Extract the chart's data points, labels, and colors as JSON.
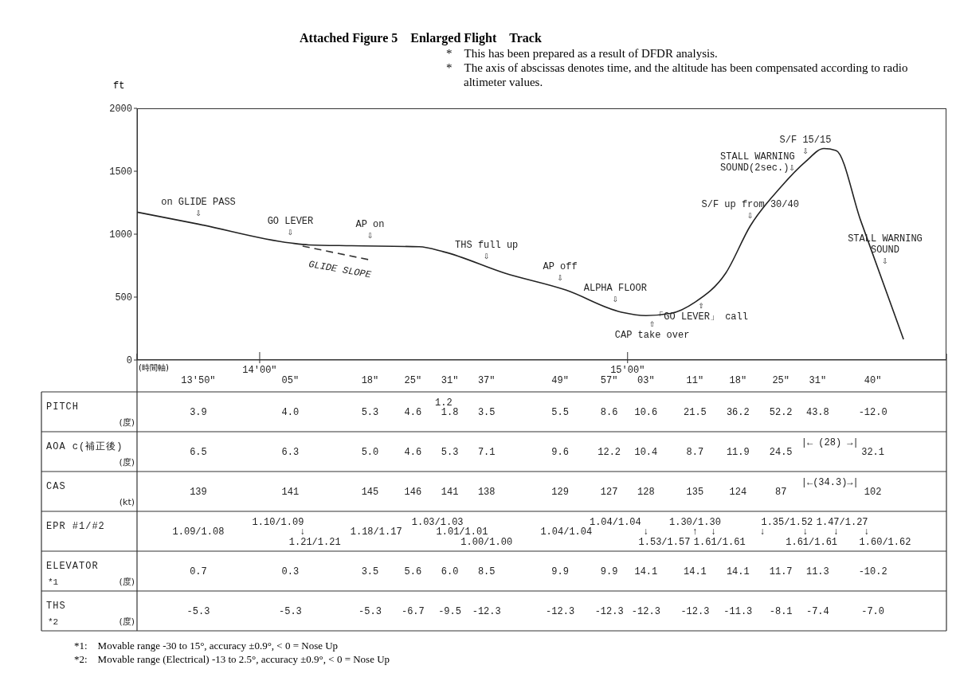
{
  "chart_data": [
    {
      "type": "line",
      "title": "Attached Figure 5　Enlarged Flight　Track",
      "subtitle": "*　This has been prepared as a result of DFDR analysis.\n*　The axis of abscissas denotes time, and the altitude has been compensated according to radio altimeter values.",
      "xlabel": "(時間軸)",
      "ylabel": "ft",
      "categories": [
        null,
        null,
        null,
        null,
        null,
        null,
        null,
        null,
        null,
        null,
        null,
        null,
        null,
        null,
        null,
        null,
        null,
        null,
        null,
        null,
        "14'00\"",
        null,
        null,
        null,
        null,
        null,
        null,
        null,
        null,
        null,
        null,
        null,
        null,
        null,
        null,
        null,
        null,
        null,
        null,
        null,
        null,
        null,
        null,
        null,
        null,
        null,
        null,
        null,
        null,
        null,
        null,
        null,
        null,
        null,
        null,
        null,
        null,
        null,
        null,
        null,
        null,
        null,
        null,
        null,
        null,
        null,
        null,
        null,
        null,
        null,
        null,
        null,
        null,
        null,
        null,
        null,
        null,
        null,
        null,
        null,
        "15'00\"",
        null,
        null,
        null,
        null,
        null,
        null,
        null,
        null,
        null,
        null,
        null,
        null,
        null,
        null,
        null,
        null,
        null,
        null,
        null,
        null,
        null,
        null,
        null,
        null,
        null,
        null,
        null,
        null,
        null,
        null,
        null,
        null,
        null,
        null,
        null,
        null,
        null,
        null,
        null,
        null,
        null,
        null,
        null,
        null,
        null,
        null,
        null,
        null,
        null,
        null,
        null,
        null
      ],
      "ylim": [
        0,
        2000
      ],
      "yticks": [
        0,
        500,
        1000,
        1500,
        2000
      ],
      "grid": false,
      "legend": false,
      "marker": "none",
      "series": [
        {
          "color": "#222222",
          "values": [
            1175,
            null,
            null,
            null,
            null,
            null,
            null,
            null,
            null,
            null,
            1080,
            null,
            null,
            null,
            null,
            null,
            null,
            null,
            null,
            null,
            null,
            null,
            null,
            null,
            null,
            930,
            null,
            null,
            915,
            null,
            null,
            null,
            null,
            null,
            null,
            908,
            null,
            null,
            null,
            null,
            null,
            null,
            null,
            null,
            null,
            null,
            900,
            null,
            null,
            null,
            860,
            null,
            null,
            null,
            null,
            null,
            null,
            null,
            null,
            null,
            690,
            null,
            null,
            null,
            null,
            null,
            null,
            null,
            null,
            null,
            555,
            null,
            null,
            null,
            null,
            null,
            null,
            null,
            null,
            380,
            null,
            null,
            null,
            353,
            null,
            null,
            null,
            370,
            null,
            null,
            null,
            460,
            null,
            null,
            null,
            null,
            690,
            null,
            null,
            null,
            1065,
            null,
            null,
            null,
            null,
            1375,
            null,
            null,
            null,
            1575,
            null,
            null,
            1680,
            null,
            1665,
            null,
            null,
            null,
            1110,
            null,
            null,
            null,
            null,
            null,
            null,
            165,
            null,
            null,
            null,
            null,
            null,
            null,
            null
          ]
        },
        {
          "name": "GLIDE SLOPE",
          "type": "line",
          "line_style": "dashed",
          "color": "#333333",
          "values": [
            null,
            null,
            null,
            null,
            null,
            null,
            null,
            null,
            null,
            null,
            null,
            null,
            null,
            null,
            null,
            null,
            null,
            null,
            null,
            null,
            null,
            null,
            null,
            null,
            null,
            null,
            null,
            905,
            null,
            null,
            null,
            null,
            null,
            null,
            null,
            null,
            null,
            null,
            795,
            null,
            null,
            null,
            null,
            null,
            null,
            null,
            null,
            null,
            null,
            null,
            null,
            null,
            null,
            null,
            null,
            null,
            null,
            null,
            null,
            null,
            null,
            null,
            null,
            null,
            null,
            null,
            null,
            null,
            null,
            null,
            null,
            null,
            null,
            null,
            null,
            null,
            null,
            null,
            null,
            null,
            null,
            null,
            null,
            null,
            null,
            null,
            null,
            null,
            null,
            null,
            null,
            null,
            null,
            null,
            null,
            null,
            null,
            null,
            null,
            null,
            null,
            null,
            null,
            null,
            null,
            null,
            null,
            null,
            null,
            null,
            null,
            null,
            null,
            null,
            null,
            null,
            null,
            null,
            null,
            null,
            null,
            null,
            null,
            null,
            null,
            null,
            null,
            null,
            null,
            null,
            null,
            null,
            null
          ]
        }
      ],
      "annotations": [
        "on GLIDE PASS\n⇩",
        "GO LEVER\n⇩",
        "AP on\n⇩",
        "THS full up\n⇩",
        "AP off\n⇩",
        "ALPHA FLOOR\n⇩",
        "⇧\nCAP take over",
        "⇧\n「GO LEVER」 call",
        "S/F up from 30/40\n⇩",
        "STALL WARNING\nSOUND(2sec.)⇩",
        "S/F 15/15\n⇩",
        "STALL WARNING\nSOUND\n⇩"
      ]
    },
    {
      "type": "heatmap",
      "categories": [
        null,
        null,
        null,
        null,
        null,
        null,
        null,
        null,
        null,
        null,
        "13'50\"",
        null,
        null,
        null,
        null,
        null,
        null,
        null,
        null,
        null,
        null,
        null,
        null,
        null,
        null,
        "05\"",
        null,
        null,
        null,
        null,
        null,
        null,
        null,
        null,
        null,
        null,
        null,
        null,
        "18\"",
        null,
        null,
        null,
        null,
        null,
        null,
        "25\"",
        null,
        null,
        null,
        null,
        null,
        "31\"",
        null,
        null,
        null,
        null,
        null,
        "37\"",
        null,
        null,
        null,
        null,
        null,
        null,
        null,
        null,
        null,
        null,
        null,
        "49\"",
        null,
        null,
        null,
        null,
        null,
        null,
        null,
        "57\"",
        null,
        null,
        null,
        null,
        null,
        "03\"",
        null,
        null,
        null,
        null,
        null,
        null,
        null,
        "11\"",
        null,
        null,
        null,
        null,
        null,
        null,
        "18\"",
        null,
        null,
        null,
        null,
        null,
        null,
        "25\"",
        null,
        null,
        null,
        null,
        null,
        "31\"",
        null,
        null,
        null,
        null,
        null,
        null,
        null,
        null,
        "40\"",
        null,
        null,
        null,
        null,
        null,
        null,
        null,
        null,
        null,
        null,
        null,
        null
      ],
      "y_categories": [
        "PITCH\n(度)",
        "AOA c(補正後)\n(度)",
        "CAS\n(kt)",
        "EPR #1/#2",
        "ELEVATOR\n*1\n(度)",
        "THS\n*2\n(度)"
      ],
      "cells": [
        [
          null,
          null,
          null,
          null,
          null,
          null,
          null,
          null,
          null,
          null,
          3.9,
          null,
          null,
          null,
          null,
          null,
          null,
          null,
          null,
          null,
          null,
          null,
          null,
          null,
          null,
          4.0,
          null,
          null,
          null,
          null,
          null,
          null,
          null,
          null,
          null,
          null,
          null,
          null,
          5.3,
          null,
          null,
          null,
          null,
          null,
          null,
          4.6,
          null,
          null,
          null,
          null,
          1.2,
          1.8,
          null,
          null,
          null,
          null,
          null,
          3.5,
          null,
          null,
          null,
          null,
          null,
          null,
          null,
          null,
          null,
          null,
          null,
          5.5,
          null,
          null,
          null,
          null,
          null,
          null,
          null,
          8.6,
          null,
          null,
          null,
          null,
          null,
          10.6,
          null,
          null,
          null,
          null,
          null,
          null,
          null,
          21.5,
          null,
          null,
          null,
          null,
          null,
          null,
          36.2,
          null,
          null,
          null,
          null,
          null,
          null,
          52.2,
          null,
          null,
          null,
          null,
          null,
          43.8,
          null,
          null,
          null,
          null,
          null,
          null,
          null,
          null,
          -12.0,
          null,
          null,
          null,
          null,
          null,
          null,
          null,
          null,
          null,
          null,
          null,
          null
        ],
        [
          null,
          null,
          null,
          null,
          null,
          null,
          null,
          null,
          null,
          null,
          6.5,
          null,
          null,
          null,
          null,
          null,
          null,
          null,
          null,
          null,
          null,
          null,
          null,
          null,
          null,
          6.3,
          null,
          null,
          null,
          null,
          null,
          null,
          null,
          null,
          null,
          null,
          null,
          null,
          5.0,
          null,
          null,
          null,
          null,
          null,
          null,
          4.6,
          null,
          null,
          null,
          null,
          null,
          5.3,
          null,
          null,
          null,
          null,
          null,
          7.1,
          null,
          null,
          null,
          null,
          null,
          null,
          null,
          null,
          null,
          null,
          null,
          9.6,
          null,
          null,
          null,
          null,
          null,
          null,
          null,
          12.2,
          null,
          null,
          null,
          null,
          null,
          10.4,
          null,
          null,
          null,
          null,
          null,
          null,
          null,
          8.7,
          null,
          null,
          null,
          null,
          null,
          null,
          11.9,
          null,
          null,
          null,
          null,
          null,
          null,
          24.5,
          null,
          null,
          null,
          null,
          null,
          null,
          null,
          28,
          null,
          null,
          null,
          null,
          null,
          null,
          32.1,
          null,
          null,
          null,
          null,
          null,
          null,
          null,
          null,
          null,
          null,
          null,
          null
        ],
        [
          null,
          null,
          null,
          null,
          null,
          null,
          null,
          null,
          null,
          null,
          139,
          null,
          null,
          null,
          null,
          null,
          null,
          null,
          null,
          null,
          null,
          null,
          null,
          null,
          null,
          141,
          null,
          null,
          null,
          null,
          null,
          null,
          null,
          null,
          null,
          null,
          null,
          null,
          145,
          null,
          null,
          null,
          null,
          null,
          null,
          146,
          null,
          null,
          null,
          null,
          null,
          141,
          null,
          null,
          null,
          null,
          null,
          138,
          null,
          null,
          null,
          null,
          null,
          null,
          null,
          null,
          null,
          null,
          null,
          129,
          null,
          null,
          null,
          null,
          null,
          null,
          null,
          127,
          null,
          null,
          null,
          null,
          null,
          128,
          null,
          null,
          null,
          null,
          null,
          null,
          null,
          135,
          null,
          null,
          null,
          null,
          null,
          null,
          124,
          null,
          null,
          null,
          null,
          null,
          null,
          87,
          null,
          null,
          null,
          null,
          null,
          null,
          null,
          34.3,
          null,
          null,
          null,
          null,
          null,
          null,
          102,
          null,
          null,
          null,
          null,
          null,
          null,
          null,
          null,
          null,
          null,
          null,
          null
        ],
        [
          null,
          null,
          null,
          null,
          null,
          null,
          null,
          null,
          null,
          null,
          null,
          null,
          null,
          null,
          null,
          null,
          null,
          null,
          null,
          null,
          null,
          null,
          null,
          null,
          null,
          null,
          null,
          null,
          null,
          null,
          null,
          null,
          null,
          null,
          null,
          null,
          null,
          null,
          null,
          null,
          null,
          null,
          null,
          null,
          null,
          null,
          null,
          null,
          null,
          null,
          null,
          null,
          null,
          null,
          null,
          null,
          null,
          null,
          null,
          null,
          null,
          null,
          null,
          null,
          null,
          null,
          null,
          null,
          null,
          null,
          null,
          null,
          null,
          null,
          null,
          null,
          null,
          null,
          null,
          null,
          null,
          null,
          null,
          null,
          null,
          null,
          null,
          null,
          null,
          null,
          null,
          null,
          null,
          null,
          null,
          null,
          null,
          null,
          null,
          null,
          null,
          null,
          null,
          null,
          null,
          null,
          null,
          null,
          null,
          null,
          null,
          null,
          null,
          null,
          null,
          null,
          null,
          null,
          null,
          null,
          null,
          null,
          null,
          null,
          null,
          null,
          null,
          null,
          null,
          null,
          null,
          null,
          null
        ],
        [
          null,
          null,
          null,
          null,
          null,
          null,
          null,
          null,
          null,
          null,
          0.7,
          null,
          null,
          null,
          null,
          null,
          null,
          null,
          null,
          null,
          null,
          null,
          null,
          null,
          null,
          0.3,
          null,
          null,
          null,
          null,
          null,
          null,
          null,
          null,
          null,
          null,
          null,
          null,
          3.5,
          null,
          null,
          null,
          null,
          null,
          null,
          5.6,
          null,
          null,
          null,
          null,
          null,
          6.0,
          null,
          null,
          null,
          null,
          null,
          8.5,
          null,
          null,
          null,
          null,
          null,
          null,
          null,
          null,
          null,
          null,
          null,
          9.9,
          null,
          null,
          null,
          null,
          null,
          null,
          null,
          9.9,
          null,
          null,
          null,
          null,
          null,
          14.1,
          null,
          null,
          null,
          null,
          null,
          null,
          null,
          14.1,
          null,
          null,
          null,
          null,
          null,
          null,
          14.1,
          null,
          null,
          null,
          null,
          null,
          null,
          11.7,
          null,
          null,
          null,
          null,
          null,
          11.3,
          null,
          null,
          null,
          null,
          null,
          null,
          null,
          null,
          -10.2,
          null,
          null,
          null,
          null,
          null,
          null,
          null,
          null,
          null,
          null,
          null,
          null
        ],
        [
          null,
          null,
          null,
          null,
          null,
          null,
          null,
          null,
          null,
          null,
          -5.3,
          null,
          null,
          null,
          null,
          null,
          null,
          null,
          null,
          null,
          null,
          null,
          null,
          null,
          null,
          -5.3,
          null,
          null,
          null,
          null,
          null,
          null,
          null,
          null,
          null,
          null,
          null,
          null,
          -5.3,
          null,
          null,
          null,
          null,
          null,
          null,
          -6.7,
          null,
          null,
          null,
          null,
          null,
          -9.5,
          null,
          null,
          null,
          null,
          null,
          -12.3,
          null,
          null,
          null,
          null,
          null,
          null,
          null,
          null,
          null,
          null,
          null,
          -12.3,
          null,
          null,
          null,
          null,
          null,
          null,
          null,
          -12.3,
          null,
          null,
          null,
          null,
          null,
          -12.3,
          null,
          null,
          null,
          null,
          null,
          null,
          null,
          -12.3,
          null,
          null,
          null,
          null,
          null,
          null,
          -11.3,
          null,
          null,
          null,
          null,
          null,
          null,
          -8.1,
          null,
          null,
          null,
          null,
          null,
          -7.4,
          null,
          null,
          null,
          null,
          null,
          null,
          null,
          null,
          -7.0,
          null,
          null,
          null,
          null,
          null,
          null,
          null,
          null,
          null,
          null,
          null,
          null
        ]
      ],
      "cell_labels": [
        [
          null,
          null,
          null,
          null,
          null,
          null,
          null,
          null,
          null,
          null,
          "3.9",
          null,
          null,
          null,
          null,
          null,
          null,
          null,
          null,
          null,
          null,
          null,
          null,
          null,
          null,
          "4.0",
          null,
          null,
          null,
          null,
          null,
          null,
          null,
          null,
          null,
          null,
          null,
          null,
          "5.3",
          null,
          null,
          null,
          null,
          null,
          null,
          "4.6",
          null,
          null,
          null,
          null,
          "1.2\n\n",
          "1.8",
          null,
          null,
          null,
          null,
          null,
          "3.5",
          null,
          null,
          null,
          null,
          null,
          null,
          null,
          null,
          null,
          null,
          null,
          "5.5",
          null,
          null,
          null,
          null,
          null,
          null,
          null,
          "8.6",
          null,
          null,
          null,
          null,
          null,
          "10.6",
          null,
          null,
          null,
          null,
          null,
          null,
          null,
          "21.5",
          null,
          null,
          null,
          null,
          null,
          null,
          "36.2",
          null,
          null,
          null,
          null,
          null,
          null,
          "52.2",
          null,
          null,
          null,
          null,
          null,
          "43.8",
          null,
          null,
          null,
          null,
          null,
          null,
          null,
          null,
          "-12.0",
          null,
          null,
          null,
          null,
          null,
          null,
          null,
          null,
          null,
          null,
          null,
          null
        ],
        [
          null,
          null,
          null,
          null,
          null,
          null,
          null,
          null,
          null,
          null,
          "6.5",
          null,
          null,
          null,
          null,
          null,
          null,
          null,
          null,
          null,
          null,
          null,
          null,
          null,
          null,
          "6.3",
          null,
          null,
          null,
          null,
          null,
          null,
          null,
          null,
          null,
          null,
          null,
          null,
          "5.0",
          null,
          null,
          null,
          null,
          null,
          null,
          "4.6",
          null,
          null,
          null,
          null,
          null,
          "5.3",
          null,
          null,
          null,
          null,
          null,
          "7.1",
          null,
          null,
          null,
          null,
          null,
          null,
          null,
          null,
          null,
          null,
          null,
          "9.6",
          null,
          null,
          null,
          null,
          null,
          null,
          null,
          "12.2",
          null,
          null,
          null,
          null,
          null,
          "10.4",
          null,
          null,
          null,
          null,
          null,
          null,
          null,
          "8.7",
          null,
          null,
          null,
          null,
          null,
          null,
          "11.9",
          null,
          null,
          null,
          null,
          null,
          null,
          "24.5",
          null,
          null,
          null,
          null,
          null,
          null,
          null,
          "|← (28) →|\n\n",
          null,
          null,
          null,
          null,
          null,
          null,
          "32.1",
          null,
          null,
          null,
          null,
          null,
          null,
          null,
          null,
          null,
          null,
          null,
          null
        ],
        [
          null,
          null,
          null,
          null,
          null,
          null,
          null,
          null,
          null,
          null,
          "139",
          null,
          null,
          null,
          null,
          null,
          null,
          null,
          null,
          null,
          null,
          null,
          null,
          null,
          null,
          "141",
          null,
          null,
          null,
          null,
          null,
          null,
          null,
          null,
          null,
          null,
          null,
          null,
          "145",
          null,
          null,
          null,
          null,
          null,
          null,
          "146",
          null,
          null,
          null,
          null,
          null,
          "141",
          null,
          null,
          null,
          null,
          null,
          "138",
          null,
          null,
          null,
          null,
          null,
          null,
          null,
          null,
          null,
          null,
          null,
          "129",
          null,
          null,
          null,
          null,
          null,
          null,
          null,
          "127",
          null,
          null,
          null,
          null,
          null,
          "128",
          null,
          null,
          null,
          null,
          null,
          null,
          null,
          "135",
          null,
          null,
          null,
          null,
          null,
          null,
          "124",
          null,
          null,
          null,
          null,
          null,
          null,
          "87",
          null,
          null,
          null,
          null,
          null,
          null,
          null,
          "|←(34.3)→|\n\n",
          null,
          null,
          null,
          null,
          null,
          null,
          "102",
          null,
          null,
          null,
          null,
          null,
          null,
          null,
          null,
          null,
          null,
          null,
          null
        ],
        [
          null,
          null,
          null,
          null,
          null,
          null,
          null,
          null,
          null,
          null,
          "\n1.09/1.08\n",
          null,
          null,
          null,
          null,
          null,
          null,
          null,
          null,
          null,
          null,
          null,
          null,
          "1.10/1.09\n\n",
          null,
          null,
          null,
          "\n↓\n",
          null,
          "\n\n1.21/1.21",
          null,
          null,
          null,
          null,
          null,
          null,
          null,
          null,
          null,
          "\n1.18/1.17\n",
          null,
          null,
          null,
          null,
          null,
          null,
          null,
          null,
          null,
          "1.03/1.03\n\n",
          null,
          null,
          null,
          "\n1.01/1.01\n",
          null,
          null,
          null,
          "\n\n1.00/1.00",
          null,
          null,
          null,
          null,
          null,
          null,
          null,
          null,
          null,
          null,
          null,
          null,
          "\n1.04/1.04\n",
          null,
          null,
          null,
          null,
          null,
          null,
          null,
          "1.04/1.04\n\n",
          null,
          null,
          null,
          null,
          "\n↓\n",
          null,
          null,
          "\n\n1.53/1.57",
          null,
          null,
          null,
          null,
          "1.30/1.30\n↑\n",
          null,
          null,
          "\n↓\n",
          "\n\n1.61/1.61",
          null,
          null,
          null,
          null,
          null,
          null,
          "\n↓\n",
          null,
          null,
          null,
          "1.35/1.52\n\n",
          null,
          null,
          "\n↓\n",
          "\n\n1.61/1.61",
          null,
          null,
          null,
          "\n↓\n",
          "1.47/1.27\n\n",
          null,
          null,
          null,
          "\n↓\n",
          null,
          null,
          "\n\n1.60/1.62",
          null,
          null,
          null,
          null,
          null,
          null,
          null,
          null,
          null,
          null
        ],
        [
          null,
          null,
          null,
          null,
          null,
          null,
          null,
          null,
          null,
          null,
          "0.7",
          null,
          null,
          null,
          null,
          null,
          null,
          null,
          null,
          null,
          null,
          null,
          null,
          null,
          null,
          "0.3",
          null,
          null,
          null,
          null,
          null,
          null,
          null,
          null,
          null,
          null,
          null,
          null,
          "3.5",
          null,
          null,
          null,
          null,
          null,
          null,
          "5.6",
          null,
          null,
          null,
          null,
          null,
          "6.0",
          null,
          null,
          null,
          null,
          null,
          "8.5",
          null,
          null,
          null,
          null,
          null,
          null,
          null,
          null,
          null,
          null,
          null,
          "9.9",
          null,
          null,
          null,
          null,
          null,
          null,
          null,
          "9.9",
          null,
          null,
          null,
          null,
          null,
          "14.1",
          null,
          null,
          null,
          null,
          null,
          null,
          null,
          "14.1",
          null,
          null,
          null,
          null,
          null,
          null,
          "14.1",
          null,
          null,
          null,
          null,
          null,
          null,
          "11.7",
          null,
          null,
          null,
          null,
          null,
          "11.3",
          null,
          null,
          null,
          null,
          null,
          null,
          null,
          null,
          "-10.2",
          null,
          null,
          null,
          null,
          null,
          null,
          null,
          null,
          null,
          null,
          null,
          null
        ],
        [
          null,
          null,
          null,
          null,
          null,
          null,
          null,
          null,
          null,
          null,
          "-5.3",
          null,
          null,
          null,
          null,
          null,
          null,
          null,
          null,
          null,
          null,
          null,
          null,
          null,
          null,
          "-5.3",
          null,
          null,
          null,
          null,
          null,
          null,
          null,
          null,
          null,
          null,
          null,
          null,
          "-5.3",
          null,
          null,
          null,
          null,
          null,
          null,
          "-6.7",
          null,
          null,
          null,
          null,
          null,
          "-9.5",
          null,
          null,
          null,
          null,
          null,
          "-12.3",
          null,
          null,
          null,
          null,
          null,
          null,
          null,
          null,
          null,
          null,
          null,
          "-12.3",
          null,
          null,
          null,
          null,
          null,
          null,
          null,
          "-12.3",
          null,
          null,
          null,
          null,
          null,
          "-12.3",
          null,
          null,
          null,
          null,
          null,
          null,
          null,
          "-12.3",
          null,
          null,
          null,
          null,
          null,
          null,
          "-11.3",
          null,
          null,
          null,
          null,
          null,
          null,
          "-8.1",
          null,
          null,
          null,
          null,
          null,
          "-7.4",
          null,
          null,
          null,
          null,
          null,
          null,
          null,
          null,
          "-7.0",
          null,
          null,
          null,
          null,
          null,
          null,
          null,
          null,
          null,
          null,
          null,
          null
        ]
      ],
      "annotations": [
        "*1:　Movable range -30 to 15°, accuracy ±0.9°, < 0 = Nose Up",
        "*2:　Movable range (Electrical) -13 to 2.5°, accuracy ±0.9°, < 0 = Nose Up"
      ]
    }
  ]
}
